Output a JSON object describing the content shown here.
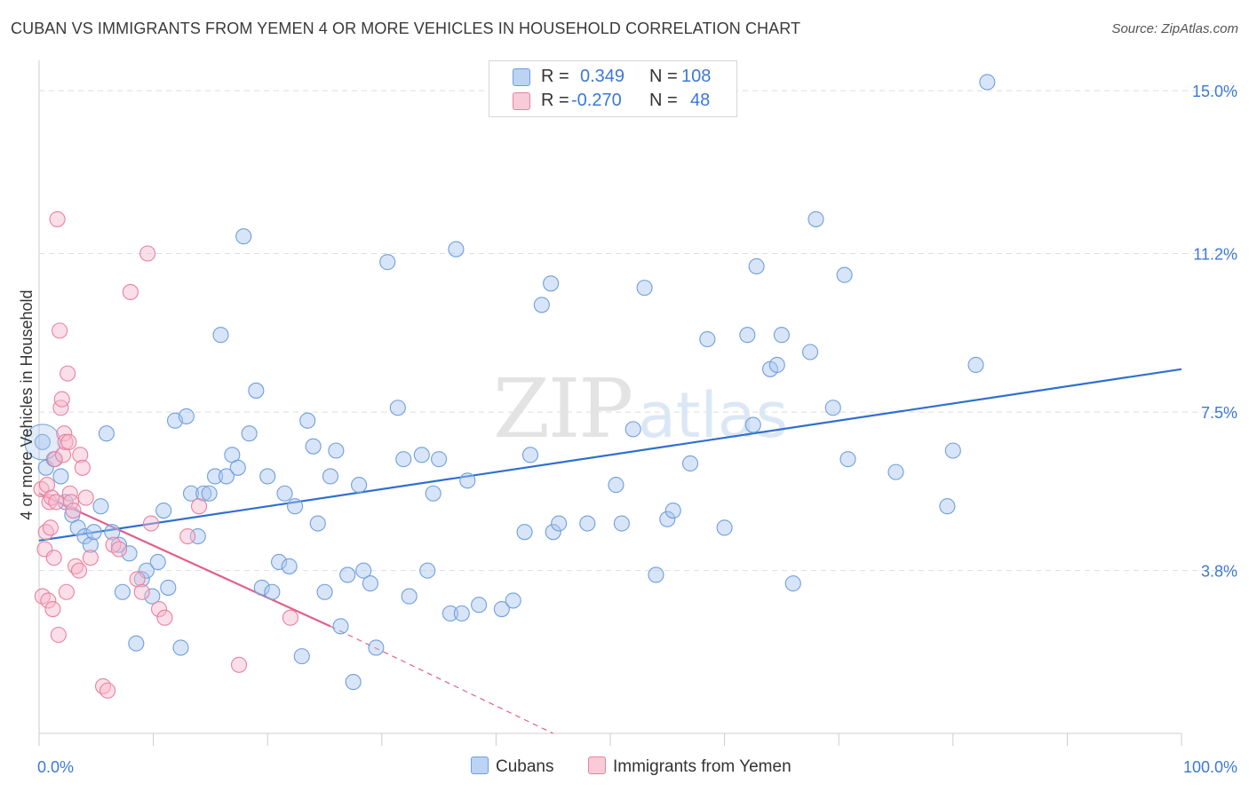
{
  "title": "CUBAN VS IMMIGRANTS FROM YEMEN 4 OR MORE VEHICLES IN HOUSEHOLD CORRELATION CHART",
  "source": "Source: ZipAtlas.com",
  "watermark": {
    "zip": "ZIP",
    "atlas": "atlas"
  },
  "legend": {
    "rows": [
      {
        "r_label": "R =",
        "r_value": "0.349",
        "n_label": "N =",
        "n_value": "108",
        "color": "#a9c6ef"
      },
      {
        "r_label": "R =",
        "r_value": "-0.270",
        "n_label": "N =",
        "n_value": "48",
        "color": "#f6b8cb"
      }
    ]
  },
  "bottom_legend": [
    {
      "label": "Cubans",
      "color": "#a9c6ef"
    },
    {
      "label": "Immigrants from Yemen",
      "color": "#f6b8cb"
    }
  ],
  "chart_data": {
    "type": "scatter",
    "xlabel": "",
    "ylabel": "4 or more Vehicles in Household",
    "xlim": [
      0,
      100
    ],
    "ylim": [
      0,
      15.5
    ],
    "x_tick_labels": [
      "0.0%",
      "100.0%"
    ],
    "y_ticks": [
      3.8,
      7.5,
      11.2,
      15.0
    ],
    "y_tick_labels": [
      "3.8%",
      "7.5%",
      "11.2%",
      "15.0%"
    ],
    "grid": true,
    "series": [
      {
        "name": "Cubans",
        "color": "#a9c6ef",
        "stroke": "#6f9fdc",
        "trend": {
          "x0": 0,
          "y0": 4.5,
          "x1": 100,
          "y1": 8.5,
          "color": "#2f6fd0"
        },
        "points": [
          [
            0.3,
            6.8
          ],
          [
            0.6,
            6.2
          ],
          [
            1.3,
            6.4
          ],
          [
            1.9,
            6.0
          ],
          [
            2.3,
            5.4
          ],
          [
            2.9,
            5.1
          ],
          [
            3.4,
            4.8
          ],
          [
            4.0,
            4.6
          ],
          [
            4.5,
            4.4
          ],
          [
            4.8,
            4.7
          ],
          [
            5.4,
            5.3
          ],
          [
            5.9,
            7.0
          ],
          [
            6.4,
            4.7
          ],
          [
            7.0,
            4.4
          ],
          [
            7.3,
            3.3
          ],
          [
            7.9,
            4.2
          ],
          [
            8.5,
            2.1
          ],
          [
            9.0,
            3.6
          ],
          [
            9.4,
            3.8
          ],
          [
            9.9,
            3.2
          ],
          [
            10.4,
            4.0
          ],
          [
            10.9,
            5.2
          ],
          [
            11.3,
            3.4
          ],
          [
            11.9,
            7.3
          ],
          [
            12.4,
            2.0
          ],
          [
            12.9,
            7.4
          ],
          [
            13.3,
            5.6
          ],
          [
            13.9,
            4.6
          ],
          [
            14.4,
            5.6
          ],
          [
            14.9,
            5.6
          ],
          [
            15.4,
            6.0
          ],
          [
            15.9,
            9.3
          ],
          [
            16.4,
            6.0
          ],
          [
            16.9,
            6.5
          ],
          [
            17.4,
            6.2
          ],
          [
            17.9,
            11.6
          ],
          [
            18.4,
            7.0
          ],
          [
            19.0,
            8.0
          ],
          [
            19.5,
            3.4
          ],
          [
            20.0,
            6.0
          ],
          [
            20.4,
            3.3
          ],
          [
            21.0,
            4.0
          ],
          [
            21.5,
            5.6
          ],
          [
            21.9,
            3.9
          ],
          [
            22.4,
            5.3
          ],
          [
            23.0,
            1.8
          ],
          [
            23.5,
            7.3
          ],
          [
            24.0,
            6.7
          ],
          [
            24.4,
            4.9
          ],
          [
            25.0,
            3.3
          ],
          [
            25.5,
            6.0
          ],
          [
            26.0,
            6.6
          ],
          [
            26.4,
            2.5
          ],
          [
            27.0,
            3.7
          ],
          [
            27.5,
            1.2
          ],
          [
            28.0,
            5.8
          ],
          [
            28.4,
            3.8
          ],
          [
            29.0,
            3.5
          ],
          [
            29.5,
            2.0
          ],
          [
            30.5,
            11.0
          ],
          [
            31.4,
            7.6
          ],
          [
            31.9,
            6.4
          ],
          [
            32.4,
            3.2
          ],
          [
            33.5,
            6.5
          ],
          [
            34.0,
            3.8
          ],
          [
            34.5,
            5.6
          ],
          [
            35.0,
            6.4
          ],
          [
            36.0,
            2.8
          ],
          [
            36.5,
            11.3
          ],
          [
            37.0,
            2.8
          ],
          [
            37.5,
            5.9
          ],
          [
            38.5,
            3.0
          ],
          [
            40.5,
            2.9
          ],
          [
            41.5,
            3.1
          ],
          [
            42.5,
            4.7
          ],
          [
            43.0,
            6.5
          ],
          [
            44.0,
            10.0
          ],
          [
            44.8,
            10.5
          ],
          [
            45.0,
            4.7
          ],
          [
            45.5,
            4.9
          ],
          [
            48.0,
            4.9
          ],
          [
            50.5,
            5.8
          ],
          [
            51.0,
            4.9
          ],
          [
            52.0,
            7.1
          ],
          [
            53.0,
            10.4
          ],
          [
            54.0,
            3.7
          ],
          [
            55.0,
            5.0
          ],
          [
            55.5,
            5.2
          ],
          [
            57.0,
            6.3
          ],
          [
            58.5,
            9.2
          ],
          [
            60.0,
            4.8
          ],
          [
            62.0,
            9.3
          ],
          [
            62.5,
            7.2
          ],
          [
            62.8,
            10.9
          ],
          [
            64.0,
            8.5
          ],
          [
            64.6,
            8.6
          ],
          [
            65.0,
            9.3
          ],
          [
            66.0,
            3.5
          ],
          [
            67.5,
            8.9
          ],
          [
            68.0,
            12.0
          ],
          [
            69.5,
            7.6
          ],
          [
            70.5,
            10.7
          ],
          [
            70.8,
            6.4
          ],
          [
            75.0,
            6.1
          ],
          [
            79.5,
            5.3
          ],
          [
            80.0,
            6.6
          ],
          [
            82.0,
            8.6
          ],
          [
            83.0,
            15.2
          ]
        ]
      },
      {
        "name": "Immigrants from Yemen",
        "color": "#f6b8cb",
        "stroke": "#e9819f",
        "trend": {
          "x0": 0,
          "y0": 5.6,
          "x1": 25.5,
          "y1": 2.5,
          "color": "#e0608d",
          "dash_to": {
            "x": 45.0,
            "y": 0.0
          }
        },
        "points": [
          [
            0.2,
            5.7
          ],
          [
            0.3,
            3.2
          ],
          [
            0.5,
            4.3
          ],
          [
            0.6,
            4.7
          ],
          [
            0.7,
            5.8
          ],
          [
            0.8,
            3.1
          ],
          [
            0.9,
            5.4
          ],
          [
            1.0,
            4.8
          ],
          [
            1.1,
            5.5
          ],
          [
            1.2,
            2.9
          ],
          [
            1.3,
            4.1
          ],
          [
            1.4,
            6.4
          ],
          [
            1.5,
            5.4
          ],
          [
            1.6,
            12.0
          ],
          [
            1.7,
            2.3
          ],
          [
            1.8,
            9.4
          ],
          [
            1.9,
            7.6
          ],
          [
            2.0,
            7.8
          ],
          [
            2.1,
            6.5
          ],
          [
            2.2,
            7.0
          ],
          [
            2.3,
            6.8
          ],
          [
            2.4,
            3.3
          ],
          [
            2.5,
            8.4
          ],
          [
            2.6,
            6.8
          ],
          [
            2.7,
            5.6
          ],
          [
            2.8,
            5.4
          ],
          [
            3.0,
            5.2
          ],
          [
            3.2,
            3.9
          ],
          [
            3.5,
            3.8
          ],
          [
            3.6,
            6.5
          ],
          [
            3.8,
            6.2
          ],
          [
            4.1,
            5.5
          ],
          [
            4.5,
            4.1
          ],
          [
            5.6,
            1.1
          ],
          [
            6.0,
            1.0
          ],
          [
            6.5,
            4.4
          ],
          [
            7.0,
            4.3
          ],
          [
            8.0,
            10.3
          ],
          [
            8.6,
            3.6
          ],
          [
            9.0,
            3.3
          ],
          [
            9.5,
            11.2
          ],
          [
            9.8,
            4.9
          ],
          [
            10.5,
            2.9
          ],
          [
            11.0,
            2.7
          ],
          [
            13.0,
            4.6
          ],
          [
            14.0,
            5.3
          ],
          [
            17.5,
            1.6
          ],
          [
            22.0,
            2.7
          ]
        ]
      }
    ]
  }
}
